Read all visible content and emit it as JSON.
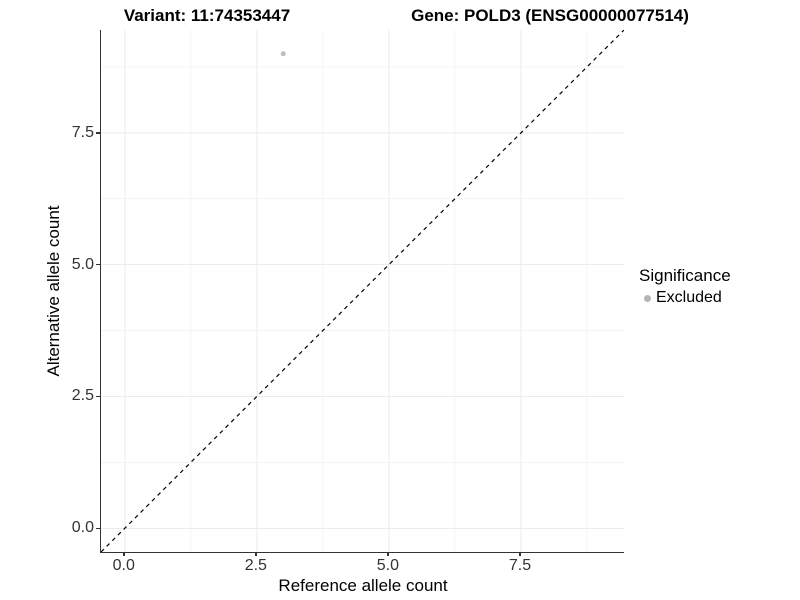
{
  "chart_data": {
    "type": "scatter",
    "titles": {
      "left": "Variant: 11:74353447",
      "right": "Gene: POLD3 (ENSG00000077514)"
    },
    "xlabel": "Reference allele count",
    "ylabel": "Alternative allele count",
    "xlim": [
      -0.45,
      9.45
    ],
    "ylim": [
      -0.45,
      9.45
    ],
    "xticks": {
      "values": [
        0,
        2.5,
        5,
        7.5
      ],
      "labels": [
        "0.0",
        "2.5",
        "5.0",
        "7.5"
      ]
    },
    "yticks": {
      "values": [
        0,
        2.5,
        5,
        7.5
      ],
      "labels": [
        "0.0",
        "2.5",
        "5.0",
        "7.5"
      ]
    },
    "minor_tick_values": [
      1.25,
      3.75,
      6.25,
      8.75
    ],
    "grid": {
      "major": true,
      "minor": true
    },
    "points": [
      {
        "x": 3,
        "y": 9,
        "series": "Excluded"
      }
    ],
    "reference_line": {
      "type": "identity",
      "slope": 1,
      "intercept": 0,
      "style": "dashed",
      "color": "#000000"
    },
    "legend": {
      "title": "Significance",
      "position": "right",
      "items": [
        {
          "label": "Excluded",
          "color": "#b5b5b5"
        }
      ]
    },
    "colors": {
      "point": "#bdbdbd",
      "axis_line": "#333333",
      "grid_major": "#ebebeb",
      "grid_minor": "#f4f4f4",
      "tick_text": "#333333",
      "title_text": "#000000"
    }
  }
}
